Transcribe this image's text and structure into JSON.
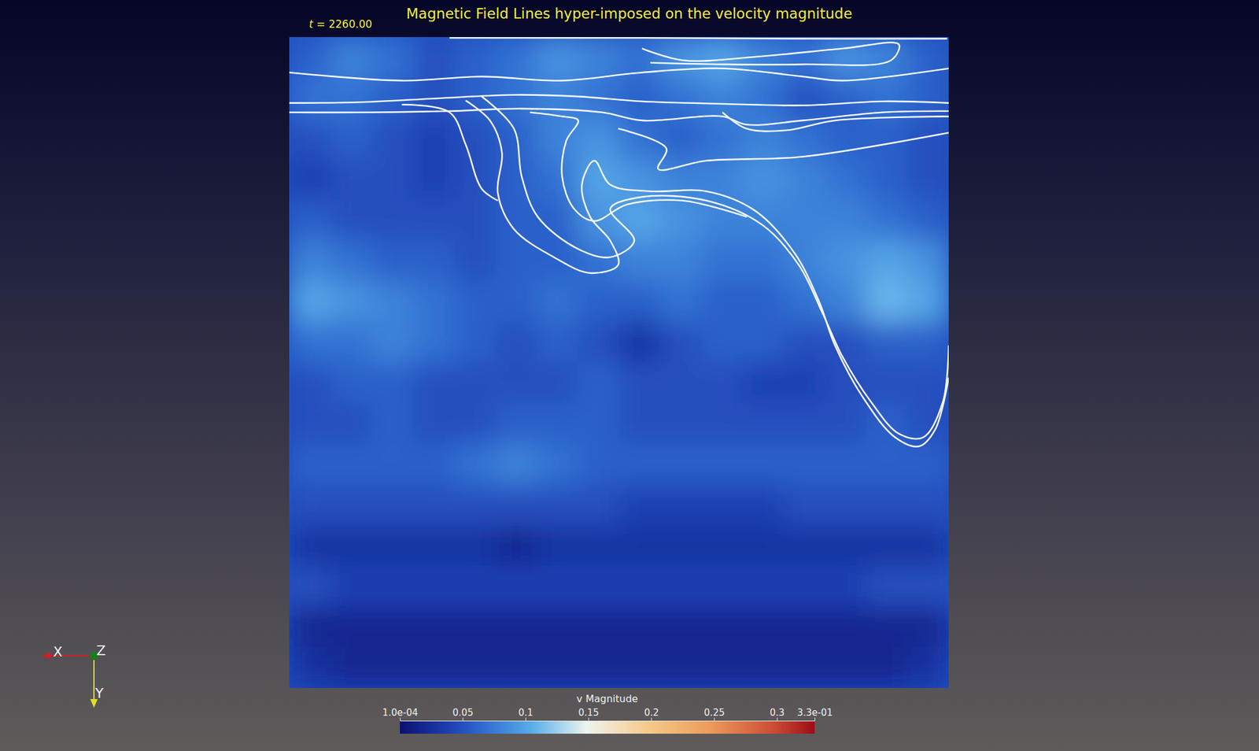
{
  "chart_data": {
    "type": "heatmap",
    "title": "Magnetic Field Lines hyper-imposed on the velocity magnitude",
    "time_label": "t = 2260.00",
    "colorbar_title": "v Magnitude",
    "colorbar_range": [
      0.0001,
      0.33
    ],
    "colorbar_ticks": [
      {
        "value": 0.0001,
        "label": "1.0e-04"
      },
      0.05,
      0.1,
      0.15,
      0.2,
      0.25,
      0.3,
      {
        "value": 0.33,
        "label": "3.3e-01"
      }
    ],
    "tick_labels": false,
    "orientation_axes": [
      "X",
      "Y",
      "Z"
    ],
    "cells": [
      [
        0.06,
        0.08,
        0.07,
        0.05,
        0.06,
        0.07,
        0.09,
        0.08,
        0.07,
        0.09,
        0.1,
        0.08,
        0.07,
        0.09,
        0.08,
        0.06
      ],
      [
        0.07,
        0.07,
        0.06,
        0.05,
        0.06,
        0.07,
        0.08,
        0.07,
        0.06,
        0.07,
        0.08,
        0.07,
        0.05,
        0.06,
        0.07,
        0.06
      ],
      [
        0.05,
        0.06,
        0.05,
        0.04,
        0.05,
        0.06,
        0.08,
        0.09,
        0.07,
        0.06,
        0.07,
        0.08,
        0.07,
        0.06,
        0.06,
        0.05
      ],
      [
        0.04,
        0.05,
        0.05,
        0.04,
        0.05,
        0.06,
        0.07,
        0.1,
        0.09,
        0.08,
        0.08,
        0.09,
        0.08,
        0.07,
        0.06,
        0.05
      ],
      [
        0.06,
        0.05,
        0.05,
        0.05,
        0.05,
        0.06,
        0.06,
        0.09,
        0.1,
        0.09,
        0.08,
        0.08,
        0.08,
        0.08,
        0.07,
        0.06
      ],
      [
        0.08,
        0.07,
        0.06,
        0.06,
        0.05,
        0.06,
        0.06,
        0.07,
        0.08,
        0.08,
        0.07,
        0.07,
        0.08,
        0.09,
        0.1,
        0.09
      ],
      [
        0.1,
        0.09,
        0.08,
        0.07,
        0.06,
        0.06,
        0.07,
        0.06,
        0.06,
        0.07,
        0.06,
        0.06,
        0.07,
        0.08,
        0.11,
        0.1
      ],
      [
        0.07,
        0.07,
        0.08,
        0.07,
        0.06,
        0.05,
        0.06,
        0.05,
        0.03,
        0.05,
        0.06,
        0.06,
        0.05,
        0.05,
        0.06,
        0.06
      ],
      [
        0.05,
        0.06,
        0.06,
        0.05,
        0.05,
        0.05,
        0.05,
        0.06,
        0.05,
        0.05,
        0.05,
        0.04,
        0.04,
        0.05,
        0.05,
        0.05
      ],
      [
        0.05,
        0.05,
        0.06,
        0.05,
        0.05,
        0.06,
        0.06,
        0.06,
        0.05,
        0.05,
        0.05,
        0.05,
        0.05,
        0.05,
        0.06,
        0.05
      ],
      [
        0.06,
        0.06,
        0.06,
        0.06,
        0.07,
        0.08,
        0.07,
        0.06,
        0.06,
        0.06,
        0.06,
        0.06,
        0.06,
        0.06,
        0.06,
        0.06
      ],
      [
        0.05,
        0.05,
        0.05,
        0.05,
        0.05,
        0.05,
        0.05,
        0.05,
        0.04,
        0.04,
        0.04,
        0.04,
        0.05,
        0.05,
        0.05,
        0.05
      ],
      [
        0.03,
        0.03,
        0.03,
        0.03,
        0.03,
        0.02,
        0.03,
        0.03,
        0.03,
        0.03,
        0.03,
        0.03,
        0.03,
        0.03,
        0.03,
        0.03
      ],
      [
        0.05,
        0.04,
        0.04,
        0.04,
        0.04,
        0.04,
        0.04,
        0.04,
        0.04,
        0.04,
        0.04,
        0.04,
        0.04,
        0.04,
        0.05,
        0.05
      ],
      [
        0.02,
        0.02,
        0.02,
        0.02,
        0.02,
        0.02,
        0.02,
        0.02,
        0.02,
        0.02,
        0.02,
        0.02,
        0.02,
        0.02,
        0.02,
        0.02
      ],
      [
        0.03,
        0.02,
        0.02,
        0.02,
        0.02,
        0.02,
        0.02,
        0.02,
        0.02,
        0.02,
        0.02,
        0.02,
        0.02,
        0.02,
        0.02,
        0.03
      ]
    ],
    "field_lines": [
      {
        "x": [
          0,
          1.75,
          3.7,
          5.45,
          7.01,
          8.56,
          10.51,
          12.46,
          14.4,
          16.0
        ],
        "y": [
          1.62,
          1.6,
          1.5,
          1.42,
          1.46,
          1.58,
          1.64,
          1.68,
          1.58,
          1.62
        ]
      },
      {
        "x": [
          0,
          1.95,
          3.89,
          5.64,
          7.59,
          8.56,
          10.51,
          11.09,
          12.46,
          14.4,
          16.0
        ],
        "y": [
          1.85,
          1.85,
          1.82,
          1.76,
          1.85,
          2.05,
          1.95,
          2.15,
          2.05,
          1.85,
          1.82
        ]
      },
      {
        "x": [
          0,
          2.73,
          4.67,
          6.62,
          8.56,
          10.51,
          12.46,
          13.43,
          16.0
        ],
        "y": [
          0.87,
          1.07,
          0.97,
          1.07,
          0.87,
          0.77,
          0.97,
          1.07,
          0.77
        ]
      },
      {
        "x": [
          3.89,
          8.56,
          12.46,
          15.96
        ],
        "y": [
          0.02,
          0.02,
          0.04,
          0.04
        ]
      },
      {
        "x": [
          8.56,
          9.54,
          11.48,
          13.43,
          14.79,
          14.6,
          12.46,
          10.51,
          8.76
        ],
        "y": [
          0.28,
          0.57,
          0.47,
          0.28,
          0.18,
          0.57,
          0.67,
          0.67,
          0.63
        ]
      },
      {
        "x": [
          4.28,
          4.87,
          5.16,
          5.06,
          5.45,
          6.42,
          7.3,
          7.98,
          7.79,
          7.3,
          7.1,
          7.4,
          7.79,
          8.76,
          10.12,
          11.29,
          12.26,
          12.85,
          13.24,
          13.92,
          14.7,
          15.28,
          15.67,
          16.0
        ],
        "y": [
          1.56,
          2.05,
          2.84,
          3.83,
          4.72,
          5.41,
          5.8,
          5.6,
          5.01,
          4.42,
          3.63,
          3.04,
          3.63,
          3.79,
          3.79,
          4.26,
          5.31,
          6.49,
          7.58,
          8.86,
          9.84,
          10.06,
          9.65,
          8.37
        ]
      },
      {
        "x": [
          4.67,
          5.45,
          5.64,
          6.03,
          7.01,
          7.79,
          8.37,
          7.79,
          8.56,
          10.12,
          11.48,
          12.36,
          12.94,
          13.43,
          14.11,
          14.79,
          15.38,
          15.86,
          16.0
        ],
        "y": [
          1.46,
          2.25,
          3.43,
          4.42,
          5.21,
          5.41,
          5.01,
          4.22,
          3.93,
          4.02,
          4.62,
          5.6,
          6.79,
          7.87,
          8.96,
          9.75,
          9.84,
          8.96,
          7.58
        ]
      },
      {
        "x": [
          5.84,
          6.62,
          7.01,
          6.72,
          6.62,
          6.91,
          7.4,
          8.18,
          9.54,
          11.1
        ],
        "y": [
          1.85,
          1.95,
          2.05,
          2.55,
          3.43,
          4.22,
          4.52,
          4.12,
          4.02,
          4.42
        ]
      },
      {
        "x": [
          7.98,
          9.15,
          8.95,
          10.12,
          12.46,
          16.0
        ],
        "y": [
          2.25,
          2.74,
          3.24,
          3.04,
          2.94,
          2.35
        ]
      },
      {
        "x": [
          2.73,
          3.89,
          4.28,
          4.67,
          5.06
        ],
        "y": [
          1.66,
          1.85,
          2.64,
          3.73,
          4.02
        ]
      },
      {
        "x": [
          10.51,
          11.09,
          12.07,
          13.24,
          16.0
        ],
        "y": [
          1.85,
          2.25,
          2.29,
          2.05,
          1.95
        ]
      }
    ]
  }
}
